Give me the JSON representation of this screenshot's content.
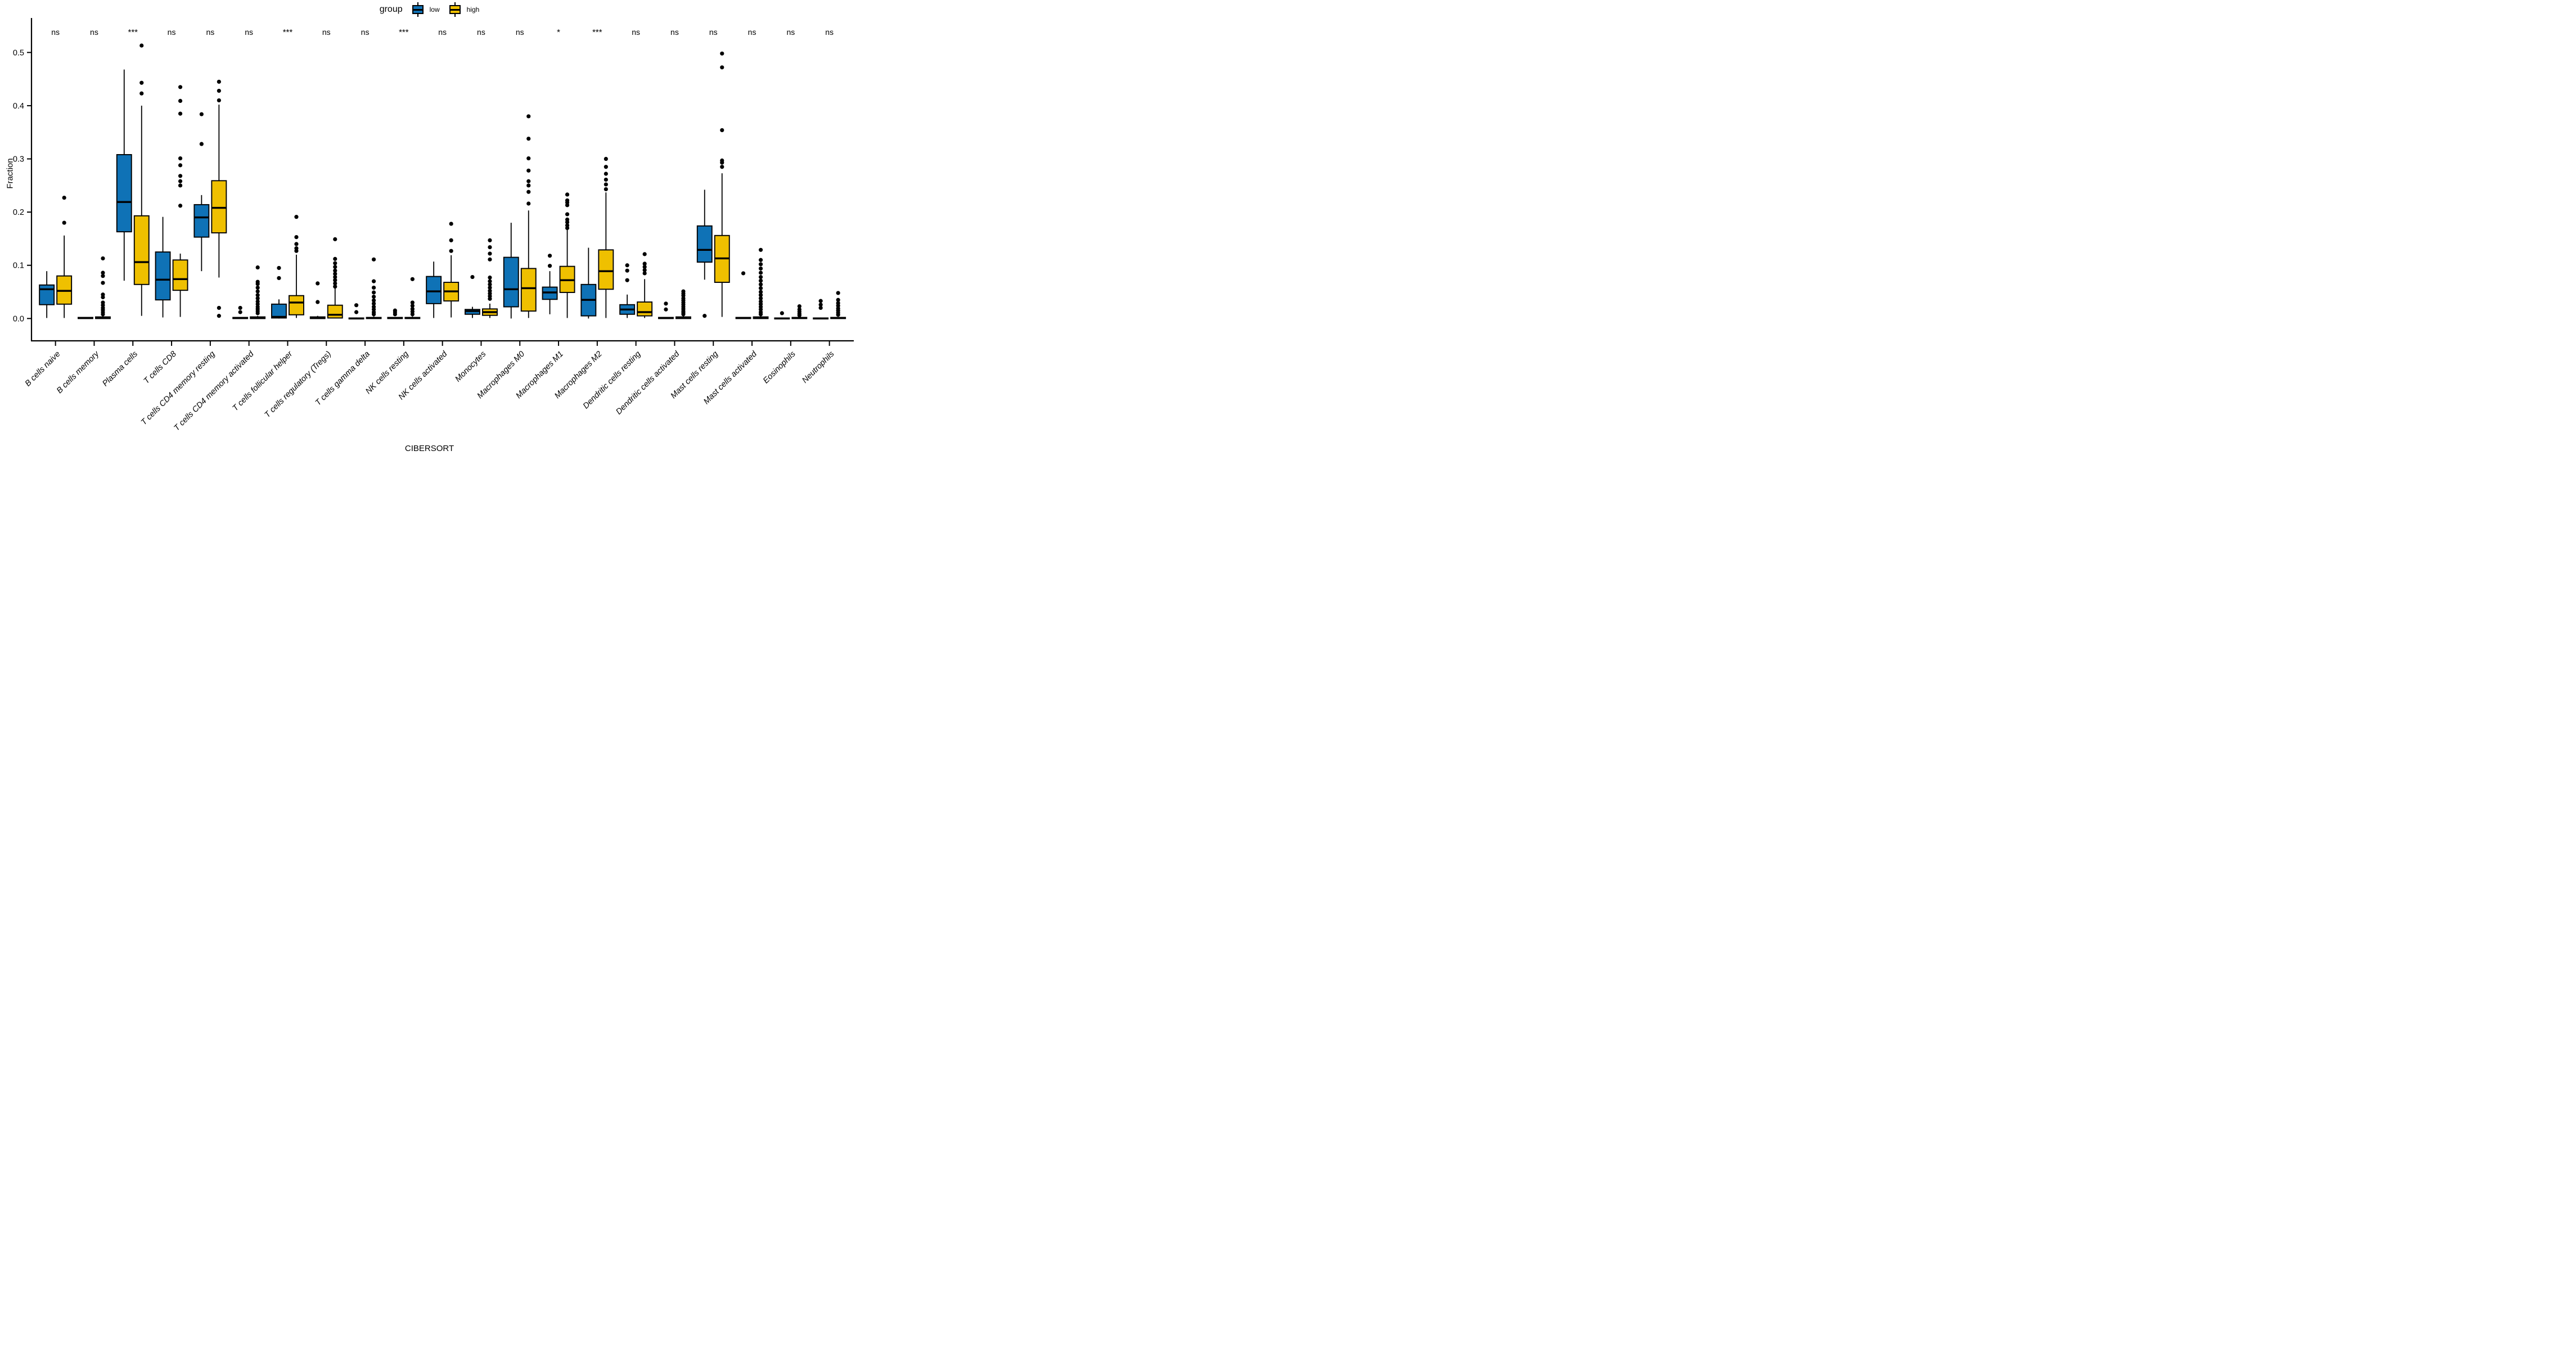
{
  "legend": {
    "title": "group",
    "items": [
      {
        "label": "low",
        "color": "#0F72B6"
      },
      {
        "label": "high",
        "color": "#EFC000"
      }
    ]
  },
  "chart_data": {
    "type": "grouped_boxplot",
    "title": "",
    "xlabel": "CIBERSORT",
    "ylabel": "Fraction",
    "ylim": [
      -0.025,
      0.55
    ],
    "yticks": [
      0.0,
      0.1,
      0.2,
      0.3,
      0.4,
      0.5
    ],
    "ytick_labels": [
      "0.0",
      "0.1",
      "0.2",
      "0.3",
      "0.4",
      "0.5"
    ],
    "grid": false,
    "legend_position": "top-center",
    "series": [
      {
        "name": "low",
        "color": "#0F72B6"
      },
      {
        "name": "high",
        "color": "#EFC000"
      }
    ],
    "categories": [
      {
        "label": "B cells naive",
        "significance": "ns",
        "low": {
          "min": 0.001,
          "q1": 0.026,
          "median": 0.055,
          "q3": 0.063,
          "max": 0.089,
          "outliers": []
        },
        "high": {
          "min": 0.001,
          "q1": 0.027,
          "median": 0.052,
          "q3": 0.08,
          "max": 0.156,
          "outliers": [
            0.18,
            0.227
          ]
        }
      },
      {
        "label": "B cells memory",
        "significance": "ns",
        "low": {
          "min": 0,
          "q1": 0,
          "median": 0.001,
          "q3": 0.002,
          "max": 0.003,
          "outliers": []
        },
        "high": {
          "min": 0,
          "q1": 0,
          "median": 0.001,
          "q3": 0.003,
          "max": 0.005,
          "outliers": [
            0.008,
            0.012,
            0.016,
            0.02,
            0.025,
            0.03,
            0.04,
            0.045,
            0.067,
            0.08,
            0.086,
            0.113
          ]
        }
      },
      {
        "label": "Plasma cells",
        "significance": "***",
        "low": {
          "min": 0.071,
          "q1": 0.163,
          "median": 0.219,
          "q3": 0.308,
          "max": 0.468,
          "outliers": []
        },
        "high": {
          "min": 0.005,
          "q1": 0.064,
          "median": 0.106,
          "q3": 0.193,
          "max": 0.4,
          "outliers": [
            0.423,
            0.443,
            0.513
          ]
        }
      },
      {
        "label": "T cells CD8",
        "significance": "ns",
        "low": {
          "min": 0.002,
          "q1": 0.035,
          "median": 0.073,
          "q3": 0.125,
          "max": 0.191,
          "outliers": []
        },
        "high": {
          "min": 0.003,
          "q1": 0.053,
          "median": 0.074,
          "q3": 0.11,
          "max": 0.122,
          "outliers": [
            0.212,
            0.25,
            0.258,
            0.268,
            0.288,
            0.301,
            0.385,
            0.409,
            0.435
          ]
        }
      },
      {
        "label": "T cells CD4 memory resting",
        "significance": "ns",
        "low": {
          "min": 0.089,
          "q1": 0.153,
          "median": 0.19,
          "q3": 0.214,
          "max": 0.232,
          "outliers": [
            0.328,
            0.384
          ]
        },
        "high": {
          "min": 0.077,
          "q1": 0.161,
          "median": 0.208,
          "q3": 0.259,
          "max": 0.402,
          "outliers": [
            0.005,
            0.02,
            0.41,
            0.428,
            0.445
          ]
        }
      },
      {
        "label": "T cells CD4 memory activated",
        "significance": "ns",
        "low": {
          "min": 0,
          "q1": 0,
          "median": 0.001,
          "q3": 0.002,
          "max": 0.003,
          "outliers": [
            0.012,
            0.02
          ]
        },
        "high": {
          "min": 0,
          "q1": 0,
          "median": 0.001,
          "q3": 0.003,
          "max": 0.005,
          "outliers": [
            0.01,
            0.014,
            0.018,
            0.022,
            0.027,
            0.032,
            0.038,
            0.044,
            0.051,
            0.058,
            0.065,
            0.069,
            0.096
          ]
        }
      },
      {
        "label": "T cells follicular helper",
        "significance": "***",
        "low": {
          "min": 0,
          "q1": 0.001,
          "median": 0.003,
          "q3": 0.027,
          "max": 0.036,
          "outliers": [
            0.076,
            0.095
          ]
        },
        "high": {
          "min": 0.001,
          "q1": 0.007,
          "median": 0.03,
          "q3": 0.043,
          "max": 0.12,
          "outliers": [
            0.127,
            0.132,
            0.14,
            0.153,
            0.191
          ]
        }
      },
      {
        "label": "T cells regulatory (Tregs)",
        "significance": "ns",
        "low": {
          "min": 0,
          "q1": 0,
          "median": 0.001,
          "q3": 0.003,
          "max": 0.005,
          "outliers": [
            0.031,
            0.066
          ]
        },
        "high": {
          "min": 0.001,
          "q1": 0.001,
          "median": 0.007,
          "q3": 0.025,
          "max": 0.057,
          "outliers": [
            0.06,
            0.066,
            0.072,
            0.078,
            0.084,
            0.09,
            0.097,
            0.104,
            0.112,
            0.149
          ]
        }
      },
      {
        "label": "T cells gamma delta",
        "significance": "ns",
        "low": {
          "min": 0,
          "q1": 0,
          "median": 0,
          "q3": 0.001,
          "max": 0.002,
          "outliers": [
            0.012,
            0.025
          ]
        },
        "high": {
          "min": 0,
          "q1": 0,
          "median": 0.001,
          "q3": 0.002,
          "max": 0.004,
          "outliers": [
            0.008,
            0.012,
            0.017,
            0.022,
            0.028,
            0.034,
            0.041,
            0.049,
            0.058,
            0.07,
            0.111
          ]
        }
      },
      {
        "label": "NK cells resting",
        "significance": "***",
        "low": {
          "min": 0,
          "q1": 0,
          "median": 0.001,
          "q3": 0.002,
          "max": 0.003,
          "outliers": [
            0.008,
            0.012,
            0.015
          ]
        },
        "high": {
          "min": 0,
          "q1": 0,
          "median": 0.001,
          "q3": 0.002,
          "max": 0.004,
          "outliers": [
            0.008,
            0.013,
            0.018,
            0.024,
            0.03,
            0.074
          ]
        }
      },
      {
        "label": "NK cells activated",
        "significance": "ns",
        "low": {
          "min": 0.001,
          "q1": 0.028,
          "median": 0.051,
          "q3": 0.079,
          "max": 0.107,
          "outliers": []
        },
        "high": {
          "min": 0.002,
          "q1": 0.033,
          "median": 0.051,
          "q3": 0.068,
          "max": 0.119,
          "outliers": [
            0.127,
            0.147,
            0.178
          ]
        }
      },
      {
        "label": "Monocytes",
        "significance": "ns",
        "low": {
          "min": 0.001,
          "q1": 0.008,
          "median": 0.014,
          "q3": 0.017,
          "max": 0.022,
          "outliers": [
            0.078
          ]
        },
        "high": {
          "min": 0.001,
          "q1": 0.006,
          "median": 0.012,
          "q3": 0.018,
          "max": 0.028,
          "outliers": [
            0.037,
            0.042,
            0.047,
            0.052,
            0.058,
            0.064,
            0.07,
            0.077,
            0.111,
            0.122,
            0.134,
            0.147
          ]
        }
      },
      {
        "label": "Macrophages M0",
        "significance": "ns",
        "low": {
          "min": 0,
          "q1": 0.022,
          "median": 0.055,
          "q3": 0.115,
          "max": 0.18,
          "outliers": []
        },
        "high": {
          "min": 0.001,
          "q1": 0.014,
          "median": 0.057,
          "q3": 0.094,
          "max": 0.203,
          "outliers": [
            0.216,
            0.238,
            0.25,
            0.258,
            0.278,
            0.301,
            0.338,
            0.38
          ]
        }
      },
      {
        "label": "Macrophages M1",
        "significance": "*",
        "low": {
          "min": 0.008,
          "q1": 0.036,
          "median": 0.049,
          "q3": 0.059,
          "max": 0.089,
          "outliers": [
            0.099,
            0.118
          ]
        },
        "high": {
          "min": 0.001,
          "q1": 0.049,
          "median": 0.072,
          "q3": 0.098,
          "max": 0.167,
          "outliers": [
            0.17,
            0.175,
            0.181,
            0.186,
            0.196,
            0.213,
            0.218,
            0.222,
            0.233
          ]
        }
      },
      {
        "label": "Macrophages M2",
        "significance": "***",
        "low": {
          "min": 0,
          "q1": 0.005,
          "median": 0.035,
          "q3": 0.064,
          "max": 0.133,
          "outliers": []
        },
        "high": {
          "min": 0.001,
          "q1": 0.055,
          "median": 0.089,
          "q3": 0.129,
          "max": 0.237,
          "outliers": [
            0.243,
            0.252,
            0.261,
            0.272,
            0.285,
            0.3
          ]
        }
      },
      {
        "label": "Dendritic cells resting",
        "significance": "ns",
        "low": {
          "min": 0.001,
          "q1": 0.008,
          "median": 0.017,
          "q3": 0.026,
          "max": 0.045,
          "outliers": [
            0.072,
            0.09,
            0.1
          ]
        },
        "high": {
          "min": 0.001,
          "q1": 0.005,
          "median": 0.012,
          "q3": 0.031,
          "max": 0.074,
          "outliers": [
            0.085,
            0.091,
            0.097,
            0.103,
            0.121
          ]
        }
      },
      {
        "label": "Dendritic cells activated",
        "significance": "ns",
        "low": {
          "min": 0,
          "q1": 0,
          "median": 0.001,
          "q3": 0.002,
          "max": 0.003,
          "outliers": [
            0.017,
            0.028
          ]
        },
        "high": {
          "min": 0,
          "q1": 0,
          "median": 0.001,
          "q3": 0.003,
          "max": 0.005,
          "outliers": [
            0.008,
            0.011,
            0.014,
            0.018,
            0.022,
            0.026,
            0.03,
            0.034,
            0.038,
            0.043,
            0.047,
            0.051
          ]
        }
      },
      {
        "label": "Mast cells resting",
        "significance": "ns",
        "low": {
          "min": 0.073,
          "q1": 0.106,
          "median": 0.129,
          "q3": 0.174,
          "max": 0.242,
          "outliers": [
            0.005
          ]
        },
        "high": {
          "min": 0.003,
          "q1": 0.068,
          "median": 0.113,
          "q3": 0.156,
          "max": 0.273,
          "outliers": [
            0.285,
            0.293,
            0.297,
            0.354,
            0.472,
            0.498
          ]
        }
      },
      {
        "label": "Mast cells activated",
        "significance": "ns",
        "low": {
          "min": 0,
          "q1": 0,
          "median": 0.001,
          "q3": 0.002,
          "max": 0.003,
          "outliers": [
            0.085
          ]
        },
        "high": {
          "min": 0,
          "q1": 0,
          "median": 0.001,
          "q3": 0.003,
          "max": 0.005,
          "outliers": [
            0.008,
            0.012,
            0.017,
            0.022,
            0.027,
            0.032,
            0.038,
            0.044,
            0.05,
            0.057,
            0.064,
            0.071,
            0.078,
            0.086,
            0.094,
            0.102,
            0.11,
            0.129
          ]
        }
      },
      {
        "label": "Eosinophils",
        "significance": "ns",
        "low": {
          "min": 0,
          "q1": 0,
          "median": 0,
          "q3": 0.001,
          "max": 0.002,
          "outliers": [
            0.01
          ]
        },
        "high": {
          "min": 0,
          "q1": 0,
          "median": 0.001,
          "q3": 0.002,
          "max": 0.003,
          "outliers": [
            0.006,
            0.009,
            0.013,
            0.017,
            0.023
          ]
        }
      },
      {
        "label": "Neutrophils",
        "significance": "ns",
        "low": {
          "min": 0,
          "q1": 0,
          "median": 0,
          "q3": 0.001,
          "max": 0.002,
          "outliers": [
            0.02,
            0.026,
            0.033
          ]
        },
        "high": {
          "min": 0,
          "q1": 0,
          "median": 0.001,
          "q3": 0.002,
          "max": 0.003,
          "outliers": [
            0.007,
            0.011,
            0.015,
            0.019,
            0.024,
            0.029,
            0.035,
            0.048
          ]
        }
      }
    ]
  }
}
